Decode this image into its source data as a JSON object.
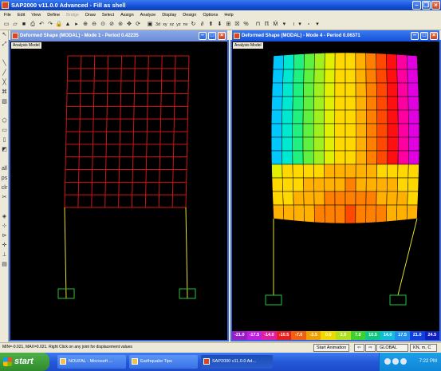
{
  "app": {
    "title": "SAP2000 v11.0.0 Advanced  - Fill as shell"
  },
  "menu": [
    "File",
    "Edit",
    "View",
    "Define",
    "Bridge",
    "Draw",
    "Select",
    "Assign",
    "Analyze",
    "Display",
    "Design",
    "Options",
    "Help"
  ],
  "menu_disabled": [
    "Bridge"
  ],
  "toolbar": {
    "labels": [
      "3d",
      "xy",
      "xz",
      "yz",
      "nv"
    ],
    "zoom_text": "I"
  },
  "left_window": {
    "title": "Deformed Shape (MODAL) - Mode 1 - Period 0.42235",
    "model_label": "Analysis Model",
    "grid_color": "#d21414",
    "frame_color": "#e8e030",
    "support_color": "#24c43a"
  },
  "right_window": {
    "title": "Deformed Shape (MODAL) - Mode 4 - Period 0.06371",
    "model_label": "Analysis Model"
  },
  "legend": {
    "labels": [
      "-21.0",
      "-17.5",
      "-14.0",
      "-10.5",
      "-7.0",
      "-3.5",
      "0.0",
      "3.5",
      "7.0",
      "10.5",
      "14.0",
      "17.5",
      "21.0",
      "24.5"
    ],
    "colors": [
      "#9a1ec8",
      "#c01ee0",
      "#e020a0",
      "#e82020",
      "#f06010",
      "#f0a000",
      "#f0d800",
      "#b0e020",
      "#40d030",
      "#10c880",
      "#10c0d8",
      "#2090f0",
      "#1040e0",
      "#1020c0"
    ]
  },
  "status": {
    "text": "MIN=-0.021, MAX=0.021. Right Click on any joint for displacement values",
    "start_animation": "Start Animation",
    "coord_system": "GLOBAL",
    "units": "KN, m, C"
  },
  "taskbar": {
    "start": "start",
    "tasks": [
      "NOUFAL - Microsoft ...",
      "Earthquake Tips",
      "SAP2000 v11.0.0 Ad..."
    ],
    "clock": "7:22 PM"
  }
}
